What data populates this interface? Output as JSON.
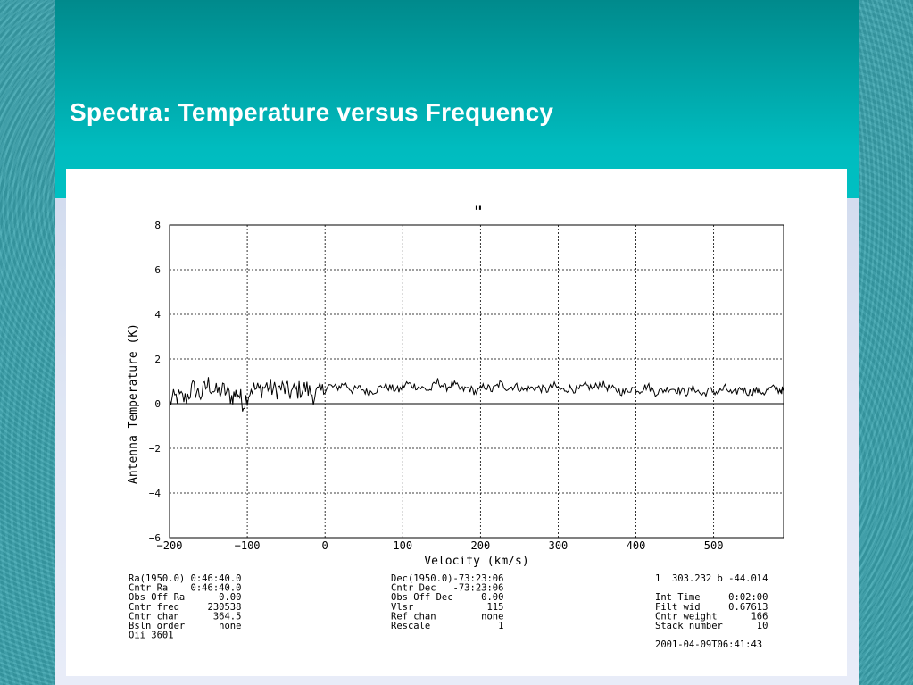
{
  "slide": {
    "title": "Spectra: Temperature versus Frequency"
  },
  "chart_data": {
    "type": "line",
    "title": "\"",
    "xlabel": "Velocity (km/s)",
    "ylabel": "Antenna Temperature (K)",
    "xlim": [
      -200,
      590
    ],
    "ylim": [
      -6,
      8
    ],
    "xticks": [
      -200,
      -100,
      0,
      100,
      200,
      300,
      400,
      500
    ],
    "xtick_labels": [
      "−200",
      "−100",
      "0",
      "100",
      "200",
      "300",
      "400",
      "500"
    ],
    "yticks": [
      8,
      6,
      4,
      2,
      0,
      -2,
      -4,
      -6
    ],
    "ytick_labels": [
      "8",
      "6",
      "4",
      "2",
      "0",
      "−2",
      "−4",
      "−6"
    ],
    "grid": true,
    "series": [
      {
        "x": [
          -200,
          -190,
          -180,
          -170,
          -160,
          -150,
          -140,
          -130,
          -120,
          -112,
          -105,
          -95,
          -85,
          -75,
          -65,
          -55,
          -45,
          -35,
          -25,
          -15,
          -5,
          5,
          15,
          25,
          35,
          45,
          55,
          65,
          75,
          85,
          95,
          105,
          115,
          125,
          135,
          145,
          155,
          165,
          175,
          185,
          195,
          205,
          215,
          225,
          235,
          245,
          255,
          265,
          275,
          285,
          295,
          305,
          315,
          325,
          335,
          345,
          355,
          365,
          375,
          385,
          395,
          405,
          415,
          425,
          435,
          445,
          455,
          465,
          475,
          485,
          495,
          505,
          515,
          525,
          535,
          545,
          555,
          565,
          575,
          585,
          590
        ],
        "y": [
          0.1,
          0.3,
          0.2,
          0.7,
          0.4,
          0.9,
          0.5,
          0.6,
          0.3,
          0.5,
          0.0,
          0.7,
          0.6,
          0.8,
          0.6,
          0.7,
          0.5,
          0.6,
          0.7,
          0.4,
          0.5,
          0.8,
          0.7,
          0.9,
          0.6,
          0.7,
          0.5,
          0.6,
          0.8,
          0.7,
          0.6,
          0.9,
          0.8,
          0.7,
          0.6,
          1.0,
          0.7,
          0.9,
          0.6,
          0.7,
          0.5,
          0.8,
          0.6,
          0.9,
          0.7,
          0.8,
          0.6,
          0.7,
          0.7,
          0.6,
          0.8,
          0.6,
          0.7,
          0.6,
          0.8,
          0.7,
          0.9,
          0.7,
          0.6,
          0.5,
          0.7,
          0.6,
          0.8,
          0.5,
          0.6,
          0.7,
          0.6,
          0.5,
          0.7,
          0.4,
          0.6,
          0.5,
          0.7,
          0.4,
          0.7,
          0.5,
          0.6,
          0.5,
          0.7,
          0.6,
          0.6
        ]
      }
    ]
  },
  "info": {
    "col1": [
      "Ra(1950.0) 0:46:40.0",
      "Cntr Ra    0:46:40.0",
      "Obs Off Ra      0.00",
      "Cntr freq     230538",
      "Cntr chan      364.5",
      "Bsln order      none",
      "Oii 3601"
    ],
    "col2": [
      "Dec(1950.0)-73:23:06",
      "Cntr Dec   -73:23:06",
      "Obs Off Dec     0.00",
      "Vlsr             115",
      "Ref chan        none",
      "Rescale            1"
    ],
    "col3": [
      "1  303.232 b -44.014",
      "",
      "Int Time     0:02:00",
      "Filt wid     0.67613",
      "Cntr weight      166",
      "Stack number      10",
      "",
      "2001-04-09T06:41:43"
    ]
  }
}
